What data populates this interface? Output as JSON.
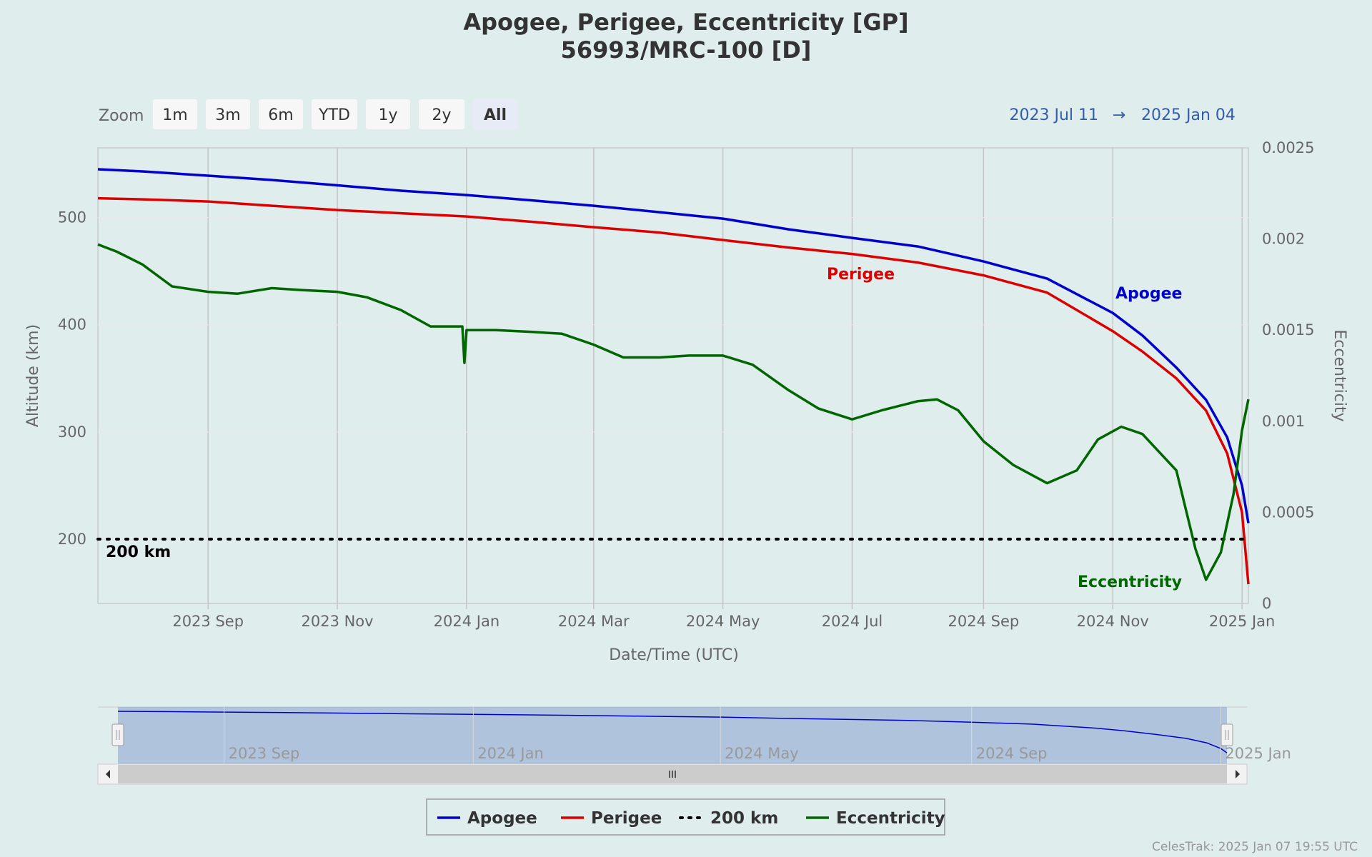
{
  "title": {
    "line1": "Apogee, Perigee, Eccentricity [GP]",
    "line2": "56993/MRC-100 [D]"
  },
  "range_selector": {
    "zoom_label": "Zoom",
    "buttons": [
      {
        "label": "1m",
        "state": "normal"
      },
      {
        "label": "3m",
        "state": "normal"
      },
      {
        "label": "6m",
        "state": "normal"
      },
      {
        "label": "YTD",
        "state": "normal"
      },
      {
        "label": "1y",
        "state": "normal"
      },
      {
        "label": "2y",
        "state": "disabled"
      },
      {
        "label": "All",
        "state": "selected"
      }
    ],
    "from_date": "2023 Jul 11",
    "arrow": "→",
    "to_date": "2025 Jan 04"
  },
  "credits": "CelesTrak: 2025 Jan 07 19:55 UTC",
  "colors": {
    "apogee": "#0000cc",
    "perigee": "#dd0000",
    "eccentricity": "#006600",
    "threshold": "#000000",
    "background": "#e0eded"
  },
  "chart_data": {
    "type": "line",
    "xlabel": "Date/Time (UTC)",
    "ylabel": "Altitude (km)",
    "ylabel_right": "Eccentricity",
    "x_range": [
      "2023-07-11",
      "2025-01-04"
    ],
    "ylim": [
      140,
      565
    ],
    "ylim_right": [
      0,
      0.0025
    ],
    "yticks": [
      200,
      300,
      400,
      500
    ],
    "yticks_right": [
      "0",
      "0.0005",
      "0.001",
      "0.0015",
      "0.002",
      "0.0025"
    ],
    "xticks": [
      {
        "date": "2023-09-01",
        "label": "2023 Sep"
      },
      {
        "date": "2023-11-01",
        "label": "2023 Nov"
      },
      {
        "date": "2024-01-01",
        "label": "2024 Jan"
      },
      {
        "date": "2024-03-01",
        "label": "2024 Mar"
      },
      {
        "date": "2024-05-01",
        "label": "2024 May"
      },
      {
        "date": "2024-07-01",
        "label": "2024 Jul"
      },
      {
        "date": "2024-09-01",
        "label": "2024 Sep"
      },
      {
        "date": "2024-11-01",
        "label": "2024 Nov"
      },
      {
        "date": "2025-01-01",
        "label": "2025 Jan"
      }
    ],
    "grid": true,
    "series": [
      {
        "name": "Apogee",
        "axis": "left",
        "color": "#0000cc",
        "points": [
          [
            "2023-07-11",
            545
          ],
          [
            "2023-08-01",
            543
          ],
          [
            "2023-09-01",
            539
          ],
          [
            "2023-10-01",
            535
          ],
          [
            "2023-11-01",
            530
          ],
          [
            "2023-12-01",
            525
          ],
          [
            "2024-01-01",
            521
          ],
          [
            "2024-02-01",
            516
          ],
          [
            "2024-03-01",
            511
          ],
          [
            "2024-04-01",
            505
          ],
          [
            "2024-05-01",
            499
          ],
          [
            "2024-06-01",
            489
          ],
          [
            "2024-07-01",
            481
          ],
          [
            "2024-08-01",
            473
          ],
          [
            "2024-09-01",
            459
          ],
          [
            "2024-10-01",
            443
          ],
          [
            "2024-11-01",
            411
          ],
          [
            "2024-11-15",
            390
          ],
          [
            "2024-12-01",
            360
          ],
          [
            "2024-12-15",
            330
          ],
          [
            "2024-12-25",
            295
          ],
          [
            "2025-01-01",
            250
          ],
          [
            "2025-01-04",
            215
          ]
        ]
      },
      {
        "name": "Perigee",
        "axis": "left",
        "color": "#dd0000",
        "points": [
          [
            "2023-07-11",
            518
          ],
          [
            "2023-08-01",
            517
          ],
          [
            "2023-09-01",
            515
          ],
          [
            "2023-10-01",
            511
          ],
          [
            "2023-11-01",
            507
          ],
          [
            "2023-12-01",
            504
          ],
          [
            "2024-01-01",
            501
          ],
          [
            "2024-02-01",
            496
          ],
          [
            "2024-03-01",
            491
          ],
          [
            "2024-04-01",
            486
          ],
          [
            "2024-05-01",
            479
          ],
          [
            "2024-06-01",
            472
          ],
          [
            "2024-07-01",
            466
          ],
          [
            "2024-08-01",
            458
          ],
          [
            "2024-09-01",
            446
          ],
          [
            "2024-10-01",
            430
          ],
          [
            "2024-11-01",
            394
          ],
          [
            "2024-11-15",
            375
          ],
          [
            "2024-12-01",
            350
          ],
          [
            "2024-12-15",
            320
          ],
          [
            "2024-12-25",
            280
          ],
          [
            "2025-01-01",
            225
          ],
          [
            "2025-01-04",
            158
          ]
        ]
      },
      {
        "name": "200 km",
        "axis": "left",
        "color": "#000000",
        "dash": "dotted",
        "points": [
          [
            "2023-07-11",
            200
          ],
          [
            "2025-01-04",
            200
          ]
        ]
      },
      {
        "name": "Eccentricity",
        "axis": "right",
        "color": "#006600",
        "points": [
          [
            "2023-07-11",
            0.00197
          ],
          [
            "2023-07-20",
            0.00193
          ],
          [
            "2023-08-01",
            0.00186
          ],
          [
            "2023-08-15",
            0.00174
          ],
          [
            "2023-09-01",
            0.00171
          ],
          [
            "2023-09-15",
            0.0017
          ],
          [
            "2023-10-01",
            0.00173
          ],
          [
            "2023-10-15",
            0.00172
          ],
          [
            "2023-11-01",
            0.00171
          ],
          [
            "2023-11-15",
            0.00168
          ],
          [
            "2023-12-01",
            0.00161
          ],
          [
            "2023-12-15",
            0.00152
          ],
          [
            "2023-12-30",
            0.00152
          ],
          [
            "2023-12-31",
            0.00132
          ],
          [
            "2024-01-01",
            0.0015
          ],
          [
            "2024-01-15",
            0.0015
          ],
          [
            "2024-02-01",
            0.00149
          ],
          [
            "2024-02-15",
            0.00148
          ],
          [
            "2024-03-01",
            0.00142
          ],
          [
            "2024-03-15",
            0.00135
          ],
          [
            "2024-04-01",
            0.00135
          ],
          [
            "2024-04-15",
            0.00136
          ],
          [
            "2024-05-01",
            0.00136
          ],
          [
            "2024-05-15",
            0.00131
          ],
          [
            "2024-06-01",
            0.00117
          ],
          [
            "2024-06-15",
            0.00107
          ],
          [
            "2024-07-01",
            0.00101
          ],
          [
            "2024-07-15",
            0.00106
          ],
          [
            "2024-08-01",
            0.00111
          ],
          [
            "2024-08-10",
            0.00112
          ],
          [
            "2024-08-20",
            0.00106
          ],
          [
            "2024-09-01",
            0.00089
          ],
          [
            "2024-09-15",
            0.00076
          ],
          [
            "2024-10-01",
            0.00066
          ],
          [
            "2024-10-15",
            0.00073
          ],
          [
            "2024-10-25",
            0.0009
          ],
          [
            "2024-11-05",
            0.00097
          ],
          [
            "2024-11-15",
            0.00093
          ],
          [
            "2024-12-01",
            0.00073
          ],
          [
            "2024-12-10",
            0.0003
          ],
          [
            "2024-12-15",
            0.00013
          ],
          [
            "2024-12-22",
            0.00028
          ],
          [
            "2024-12-28",
            0.0006
          ],
          [
            "2025-01-01",
            0.00095
          ],
          [
            "2025-01-04",
            0.00112
          ]
        ]
      }
    ],
    "series_labels": [
      {
        "text": "Apogee",
        "color": "#0000cc"
      },
      {
        "text": "Perigee",
        "color": "#dd0000"
      },
      {
        "text": "Eccentricity",
        "color": "#006600"
      },
      {
        "text": "200 km",
        "color": "#000000"
      }
    ],
    "legend": {
      "placement": "bottom-center",
      "items": [
        {
          "name": "Apogee",
          "color": "#0000cc",
          "style": "solid"
        },
        {
          "name": "Perigee",
          "color": "#dd0000",
          "style": "solid"
        },
        {
          "name": "200 km",
          "color": "#000000",
          "style": "dotted"
        },
        {
          "name": "Eccentricity",
          "color": "#006600",
          "style": "solid"
        }
      ]
    },
    "navigator": {
      "series": "Apogee",
      "tick_labels": [
        {
          "date": "2023-09-01",
          "label": "2023 Sep"
        },
        {
          "date": "2024-01-01",
          "label": "2024 Jan"
        },
        {
          "date": "2024-05-01",
          "label": "2024 May"
        },
        {
          "date": "2024-09-01",
          "label": "2024 Sep"
        },
        {
          "date": "2025-01-01",
          "label": "2025 Jan"
        }
      ]
    }
  }
}
